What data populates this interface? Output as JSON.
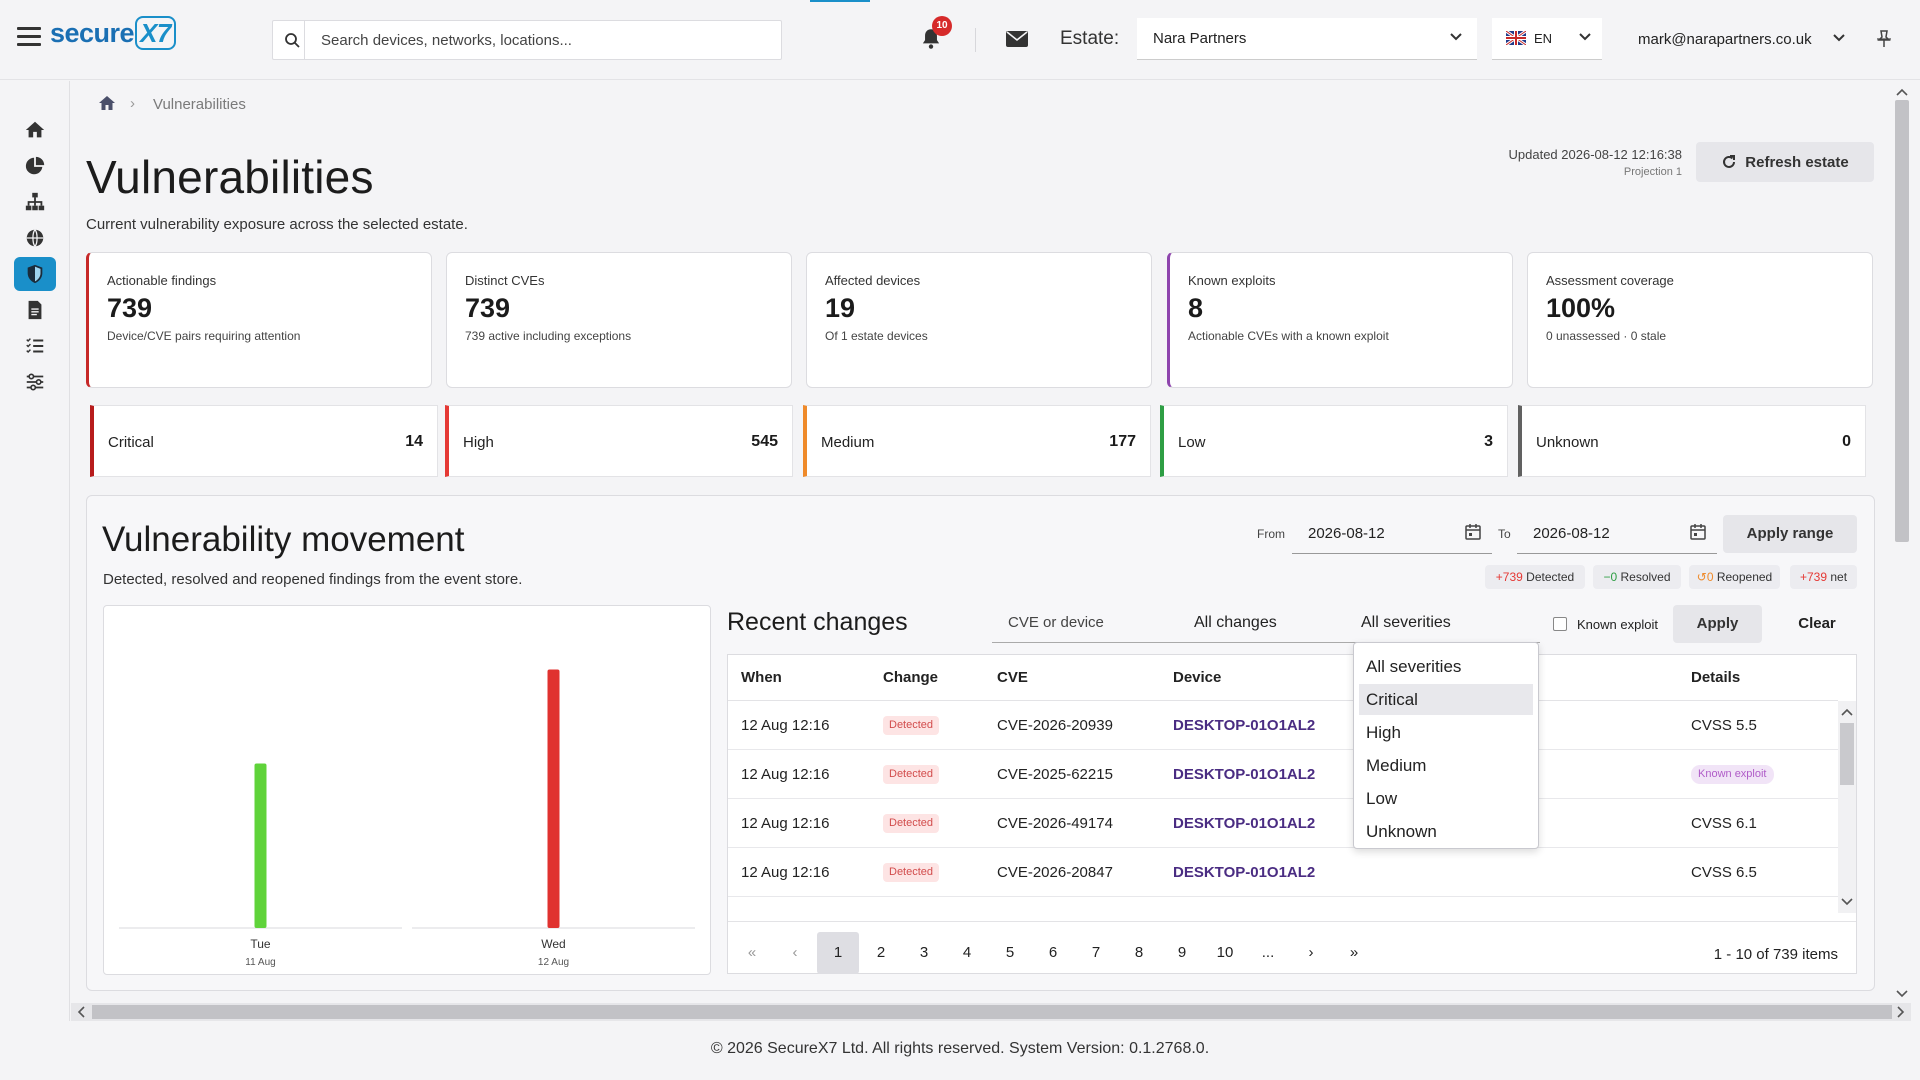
{
  "header": {
    "brand": "secure",
    "brand_suffix": "X7",
    "search_placeholder": "Search devices, networks, locations...",
    "notification_count": "10",
    "estate_label": "Estate:",
    "estate_value": "Nara Partners",
    "language": "EN",
    "user_email": "mark@narapartners.co.uk"
  },
  "breadcrumb": {
    "separator": "›",
    "current": "Vulnerabilities"
  },
  "page": {
    "title": "Vulnerabilities",
    "subtitle": "Current vulnerability exposure across the selected estate.",
    "updated": "Updated 2026-08-12 12:16:38",
    "projection": "Projection 1",
    "refresh_label": "Refresh estate"
  },
  "kpis": [
    {
      "label": "Actionable findings",
      "value": "739",
      "note": "Device/CVE pairs requiring attention"
    },
    {
      "label": "Distinct CVEs",
      "value": "739",
      "note": "739 active including exceptions"
    },
    {
      "label": "Affected devices",
      "value": "19",
      "note": "Of 1 estate devices"
    },
    {
      "label": "Known exploits",
      "value": "8",
      "note": "Actionable CVEs with a known exploit"
    },
    {
      "label": "Assessment coverage",
      "value": "100%",
      "note": "0 unassessed · 0 stale"
    }
  ],
  "severities": [
    {
      "name": "Critical",
      "count": "14",
      "color": "#b71c1c"
    },
    {
      "name": "High",
      "count": "545",
      "color": "#e53935"
    },
    {
      "name": "Medium",
      "count": "177",
      "color": "#ef8a2a"
    },
    {
      "name": "Low",
      "count": "3",
      "color": "#2e9e44"
    },
    {
      "name": "Unknown",
      "count": "0",
      "color": "#616161"
    }
  ],
  "movement": {
    "title": "Vulnerability movement",
    "subtitle": "Detected, resolved and reopened findings from the event store.",
    "from_label": "From",
    "from_value": "2026-08-12",
    "to_label": "To",
    "to_value": "2026-08-12",
    "apply_range": "Apply range",
    "pills": [
      {
        "num": "+739",
        "label": "Detected",
        "color": "#e53935"
      },
      {
        "num": "−0",
        "label": "Resolved",
        "color": "#2e9e44"
      },
      {
        "num": "↺0",
        "label": "Reopened",
        "color": "#ef8a2a"
      },
      {
        "num": "+739",
        "label": "net",
        "color": "#e53935"
      }
    ]
  },
  "chart_data": {
    "type": "bar",
    "categories": [
      "Tue",
      "Wed"
    ],
    "category_dates": [
      "11 Aug",
      "12 Aug"
    ],
    "series": [
      {
        "values": [
          14,
          0
        ],
        "color": "#5fd33a"
      },
      {
        "values": [
          0,
          22
        ],
        "color": "#e0322f"
      }
    ],
    "ylim": [
      0,
      24
    ]
  },
  "recent": {
    "title": "Recent changes",
    "search_placeholder": "CVE or device",
    "change_filter": "All changes",
    "severity_filter": "All severities",
    "known_exploit_label": "Known exploit",
    "apply_label": "Apply",
    "clear_label": "Clear",
    "columns": {
      "when": "When",
      "change": "Change",
      "cve": "CVE",
      "device": "Device",
      "details": "Details"
    },
    "rows": [
      {
        "when": "12 Aug 12:16",
        "change": "Detected",
        "cve": "CVE-2026-20939",
        "device": "DESKTOP-01O1AL2",
        "details": "CVSS 5.5",
        "known_exploit": false
      },
      {
        "when": "12 Aug 12:16",
        "change": "Detected",
        "cve": "CVE-2025-62215",
        "device": "DESKTOP-01O1AL2",
        "details": "Known exploit",
        "known_exploit": true
      },
      {
        "when": "12 Aug 12:16",
        "change": "Detected",
        "cve": "CVE-2026-49174",
        "device": "DESKTOP-01O1AL2",
        "details": "CVSS 6.1",
        "known_exploit": false
      },
      {
        "when": "12 Aug 12:16",
        "change": "Detected",
        "cve": "CVE-2026-20847",
        "device": "DESKTOP-01O1AL2",
        "details": "CVSS 6.5",
        "known_exploit": false
      }
    ],
    "severity_options": [
      "All severities",
      "Critical",
      "High",
      "Medium",
      "Low",
      "Unknown"
    ],
    "highlighted_option": "Critical",
    "pagination": {
      "pages": [
        "1",
        "2",
        "3",
        "4",
        "5",
        "6",
        "7",
        "8",
        "9",
        "10",
        "..."
      ],
      "current": "1",
      "info": "1 - 10 of 739 items"
    }
  },
  "footer": {
    "text": "© 2026 SecureX7 Ltd. All rights reserved.  System Version: 0.1.2768.0."
  }
}
